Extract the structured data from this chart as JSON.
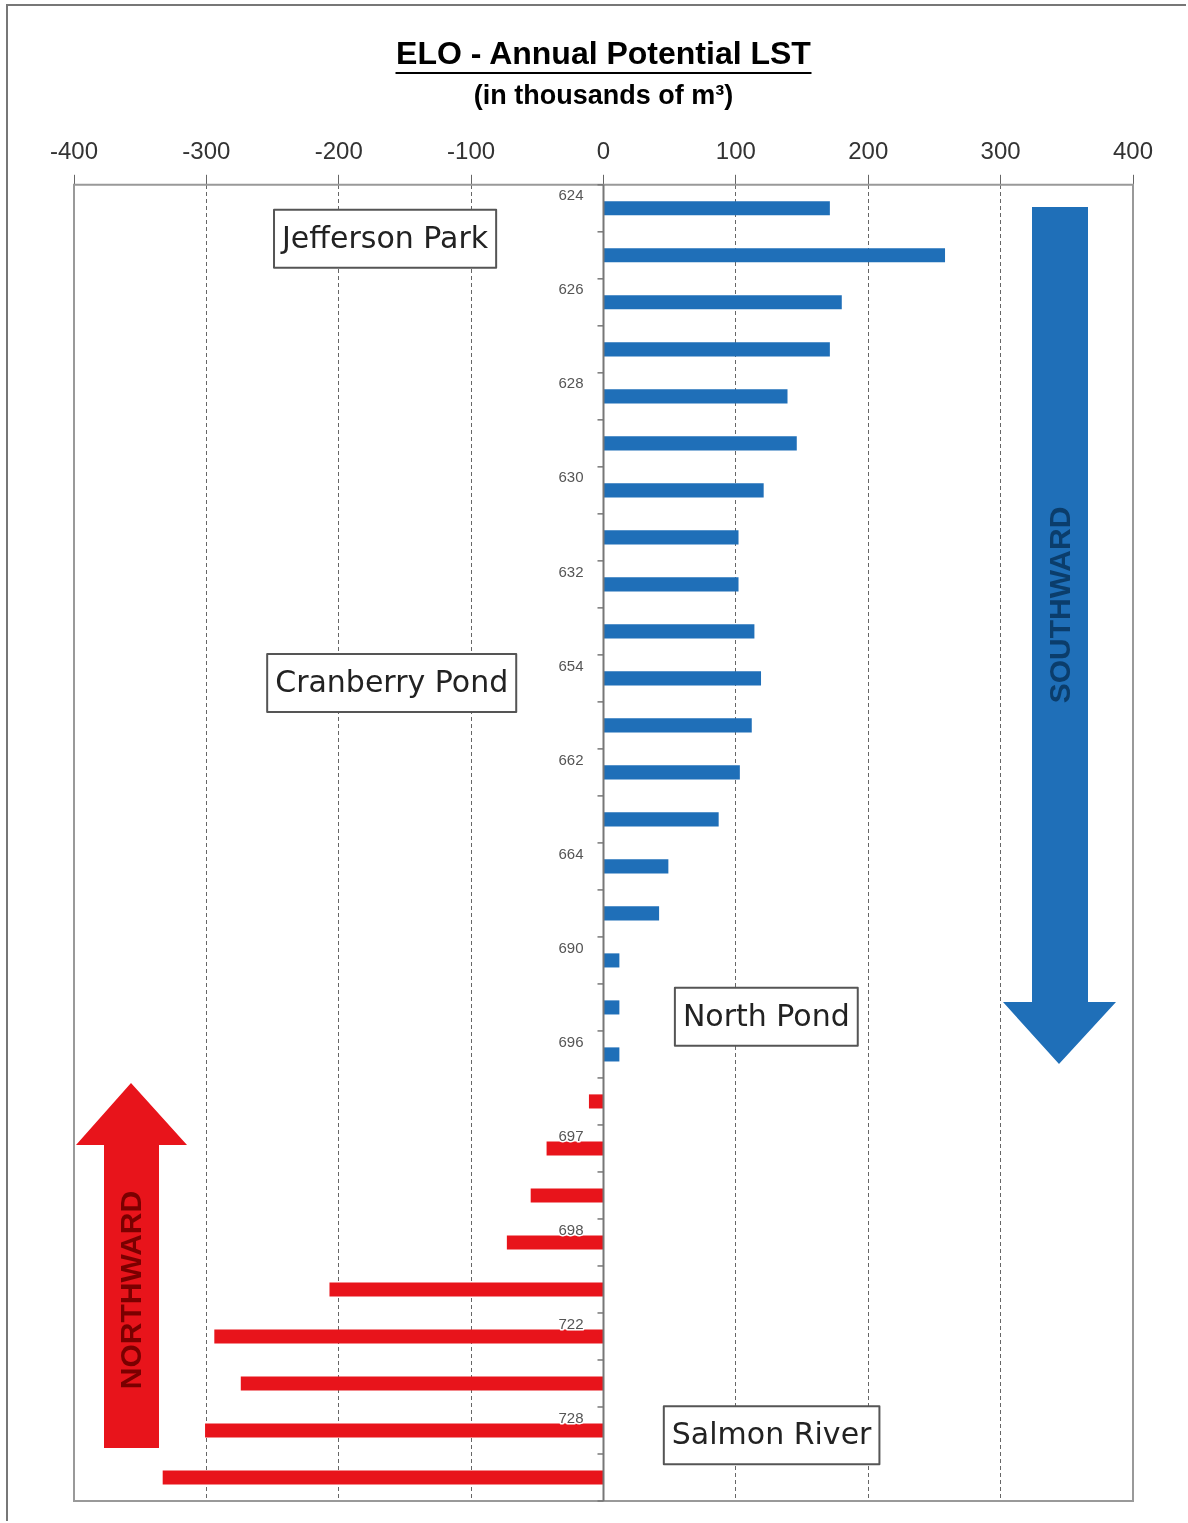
{
  "chart_data": {
    "type": "bar",
    "orientation": "horizontal",
    "title": "ELO - Annual Potential LST",
    "subtitle": "(in thousands of m³)",
    "categories": [
      "624",
      null,
      "626",
      null,
      "628",
      null,
      "630",
      null,
      "632",
      null,
      "654",
      null,
      "662",
      null,
      "664",
      null,
      "690",
      null,
      "696",
      null,
      "697",
      null,
      "698",
      null,
      "722",
      null,
      "728",
      null
    ],
    "values": [
      171,
      258,
      180,
      171,
      139,
      146,
      121,
      102,
      102,
      114,
      119,
      112,
      103,
      87,
      49,
      42,
      12,
      12,
      12,
      -11,
      -43,
      -55,
      -73,
      -207,
      -294,
      -274,
      -301,
      -333
    ],
    "colors": [
      "#1f6fb8",
      "#1f6fb8",
      "#1f6fb8",
      "#1f6fb8",
      "#1f6fb8",
      "#1f6fb8",
      "#1f6fb8",
      "#1f6fb8",
      "#1f6fb8",
      "#1f6fb8",
      "#1f6fb8",
      "#1f6fb8",
      "#1f6fb8",
      "#1f6fb8",
      "#1f6fb8",
      "#1f6fb8",
      "#1f6fb8",
      "#1f6fb8",
      "#1f6fb8",
      "#e8141b",
      "#e8141b",
      "#e8141b",
      "#e8141b",
      "#e8141b",
      "#e8141b",
      "#e8141b",
      "#e8141b",
      "#e8141b"
    ],
    "xlim": [
      -400,
      400
    ],
    "xticks": [
      -400,
      -300,
      -200,
      -100,
      0,
      100,
      200,
      300,
      400
    ],
    "grid": "x",
    "legend": false,
    "annotations": [
      "Jefferson Park",
      "Cranberry Pond",
      "North Pond",
      "Salmon River",
      "SOUTHWARD",
      "NORTHWARD"
    ]
  }
}
